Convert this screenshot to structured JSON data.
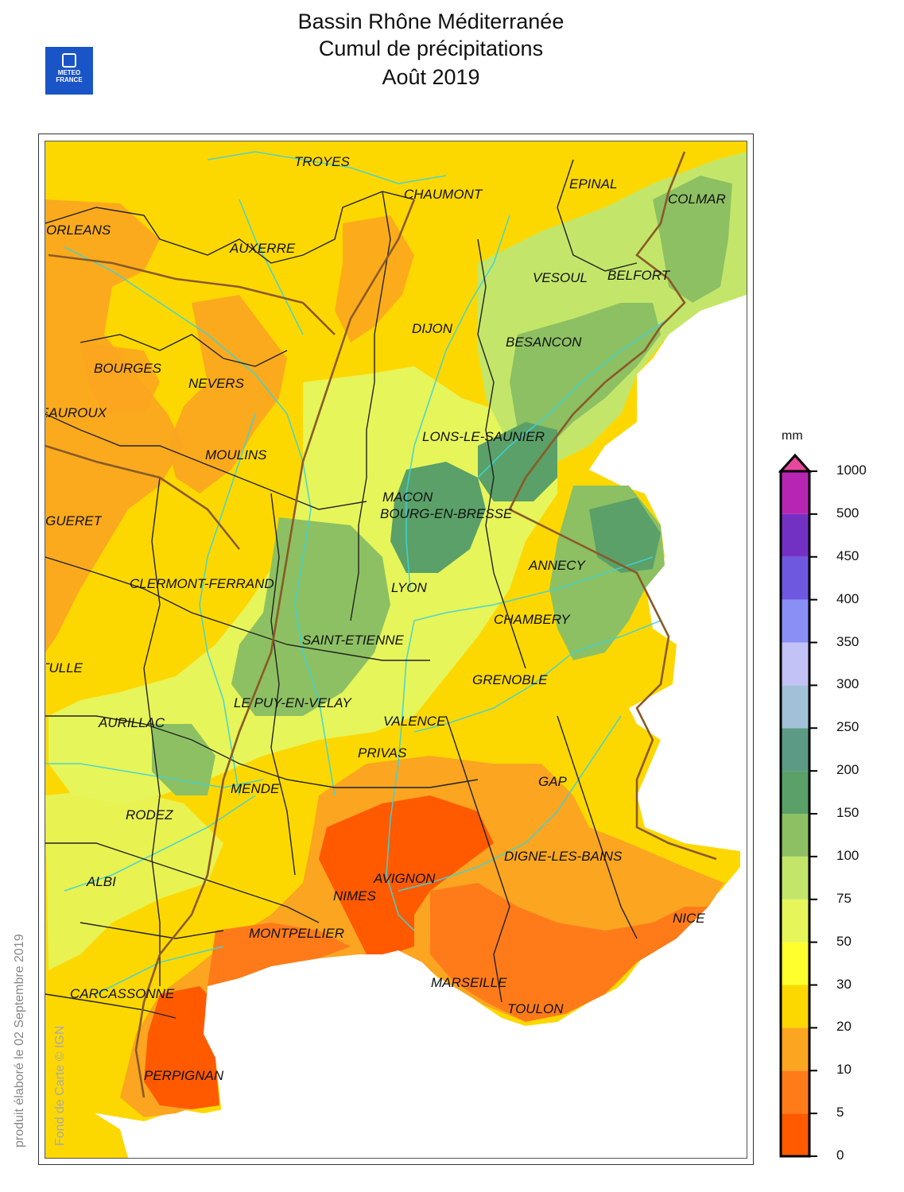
{
  "header": {
    "title_line1": "Bassin Rhône Méditerranée",
    "title_line2": "Cumul de précipitations",
    "title_line3": "Août 2019",
    "logo_text_1": "METEO",
    "logo_text_2": "FRANCE"
  },
  "credits": {
    "produced": "produit élaboré le 02 Septembre 2019",
    "map_source": "Fond de Carte © IGN"
  },
  "legend": {
    "unit": "mm",
    "ticks": [
      "0",
      "5",
      "10",
      "20",
      "30",
      "50",
      "75",
      "100",
      "150",
      "200",
      "250",
      "300",
      "350",
      "400",
      "450",
      "500",
      "1000"
    ],
    "colors": [
      "#ff5a00",
      "#ff7b1a",
      "#fba520",
      "#fdd800",
      "#ffff2e",
      "#e6f55a",
      "#c3e66a",
      "#8dc062",
      "#5aa068",
      "#5d9a86",
      "#a2c1d8",
      "#c2c2f7",
      "#8a8ff5",
      "#6f58e0",
      "#7331c4",
      "#b726b3"
    ],
    "top_arrow_color": "#e8479f"
  },
  "cities": [
    {
      "name": "TROYES"
    },
    {
      "name": "CHAUMONT"
    },
    {
      "name": "EPINAL"
    },
    {
      "name": "COLMAR"
    },
    {
      "name": "ORLEANS"
    },
    {
      "name": "AUXERRE"
    },
    {
      "name": "VESOUL"
    },
    {
      "name": "BELFORT"
    },
    {
      "name": "DIJON"
    },
    {
      "name": "BESANCON"
    },
    {
      "name": "BOURGES"
    },
    {
      "name": "NEVERS"
    },
    {
      "name": "CHATEAUROUX"
    },
    {
      "name": "LONS-LE-SAUNIER"
    },
    {
      "name": "MOULINS"
    },
    {
      "name": "MACON"
    },
    {
      "name": "BOURG-EN-BRESSE"
    },
    {
      "name": "GUERET"
    },
    {
      "name": "ANNECY"
    },
    {
      "name": "CLERMONT-FERRAND"
    },
    {
      "name": "LYON"
    },
    {
      "name": "CHAMBERY"
    },
    {
      "name": "SAINT-ETIENNE"
    },
    {
      "name": "TULLE"
    },
    {
      "name": "GRENOBLE"
    },
    {
      "name": "LE PUY-EN-VELAY"
    },
    {
      "name": "AURILLAC"
    },
    {
      "name": "VALENCE"
    },
    {
      "name": "PRIVAS"
    },
    {
      "name": "GAP"
    },
    {
      "name": "MENDE"
    },
    {
      "name": "RODEZ"
    },
    {
      "name": "DIGNE-LES-BAINS"
    },
    {
      "name": "ALBI"
    },
    {
      "name": "AVIGNON"
    },
    {
      "name": "NIMES"
    },
    {
      "name": "NICE"
    },
    {
      "name": "MONTPELLIER"
    },
    {
      "name": "CARCASSONNE"
    },
    {
      "name": "MARSEILLE"
    },
    {
      "name": "TOULON"
    },
    {
      "name": "PERPIGNAN"
    }
  ]
}
